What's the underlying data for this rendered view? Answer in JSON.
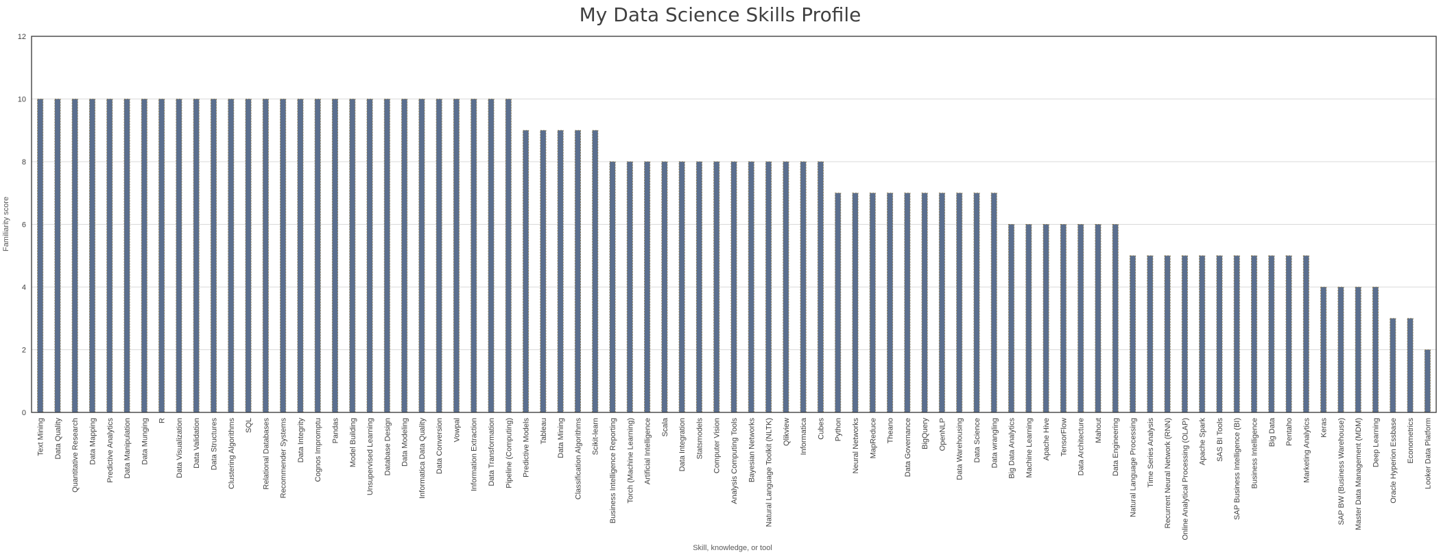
{
  "chart_data": {
    "type": "bar",
    "title": "My Data Science Skills Profile",
    "xlabel": "Skill, knowledge, or tool",
    "ylabel": "Familiarity score",
    "ylim": [
      0,
      12
    ],
    "yticks": [
      0,
      2,
      4,
      6,
      8,
      10,
      12
    ],
    "grid": true,
    "legend": "none",
    "bar_color": "#5b6f8f",
    "bar_edge_color": "#8a7a50",
    "categories": [
      "Text Mining",
      "Data Quality",
      "Quantitative Research",
      "Data Mapping",
      "Predictive Analytics",
      "Data Manipulation",
      "Data Munging",
      "R",
      "Data Visualization",
      "Data Validation",
      "Data Structures",
      "Clustering Algorithms",
      "SQL",
      "Relational Databases",
      "Recommender Systems",
      "Data Integrity",
      "Cognos Impromptu",
      "Pandas",
      "Model Building",
      "Unsupervised Learning",
      "Database Design",
      "Data Modeling",
      "Informatica Data Quality",
      "Data Conversion",
      "Vowpal",
      "Information Extraction",
      "Data Transformation",
      "Pipeline (Computing)",
      "Predictive Models",
      "Tableau",
      "Data Mining",
      "Classification Algorithms",
      "Scikit-learn",
      "Business Intelligence Reporting",
      "Torch (Machine Learning)",
      "Artificial Intelligence",
      "Scala",
      "Data Integration",
      "Statsmodels",
      "Computer Vision",
      "Analysis Computing Tools",
      "Bayesian Networks",
      "Natural Language Toolkit (NLTK)",
      "Qlikview",
      "Informatica",
      "Cubes",
      "Python",
      "Neural Networks",
      "MapReduce",
      "Theano",
      "Data Governance",
      "BigQuery",
      "OpenNLP",
      "Data Warehousing",
      "Data Science",
      "Data wrangling",
      "Big Data Analytics",
      "Machine Learning",
      "Apache Hive",
      "TensorFlow",
      "Data Architecture",
      "Mahout",
      "Data Engineering",
      "Natural Language Processing",
      "Time Series Analysis",
      "Recurrent Neural Network (RNN)",
      "Online Analytical Processing (OLAP)",
      "Apache Spark",
      "SAS BI Tools",
      "SAP Business Intelligence (BI)",
      "Business Intelligence",
      "Big Data",
      "Pentaho",
      "Marketing Analytics",
      "Keras",
      "SAP BW (Business Warehouse)",
      "Master Data Management (MDM)",
      "Deep Learning",
      "Oracle Hyperion Essbase",
      "Econometrics",
      "Looker Data Platform"
    ],
    "values": [
      10,
      10,
      10,
      10,
      10,
      10,
      10,
      10,
      10,
      10,
      10,
      10,
      10,
      10,
      10,
      10,
      10,
      10,
      10,
      10,
      10,
      10,
      10,
      10,
      10,
      10,
      10,
      10,
      9,
      9,
      9,
      9,
      9,
      8,
      8,
      8,
      8,
      8,
      8,
      8,
      8,
      8,
      8,
      8,
      8,
      8,
      7,
      7,
      7,
      7,
      7,
      7,
      7,
      7,
      7,
      7,
      6,
      6,
      6,
      6,
      6,
      6,
      6,
      5,
      5,
      5,
      5,
      5,
      5,
      5,
      5,
      5,
      5,
      5,
      4,
      4,
      4,
      4,
      3,
      3,
      2
    ]
  }
}
